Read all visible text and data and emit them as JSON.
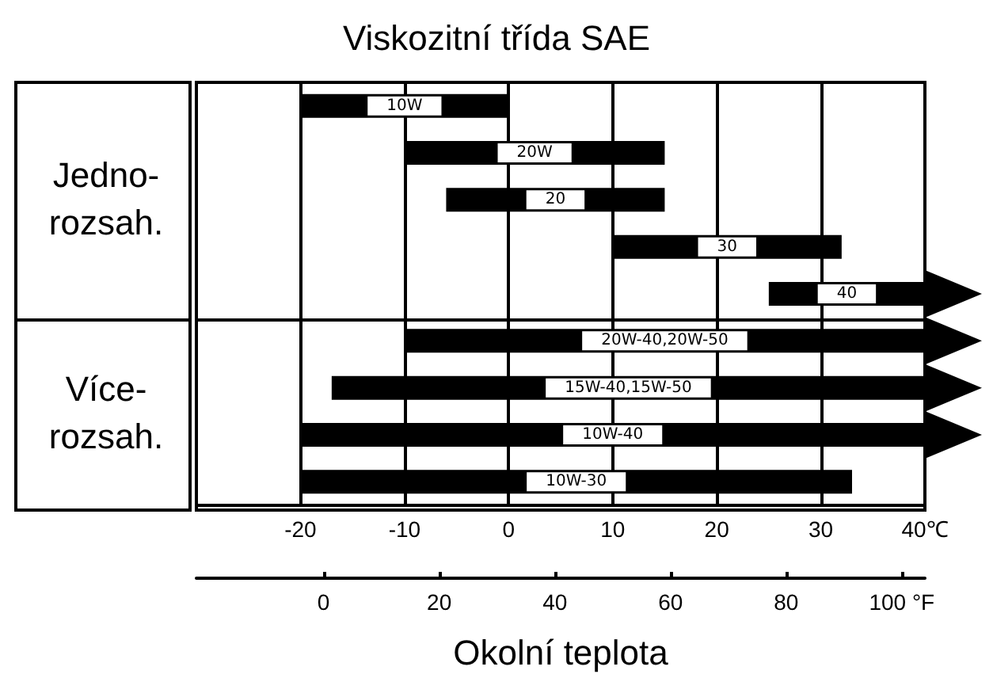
{
  "chart_data": {
    "type": "bar",
    "orientation": "horizontal",
    "title": "Viskozitní třída SAE",
    "xlabel": "Okolní teplota",
    "categories": [
      null,
      null,
      null,
      null,
      null,
      null,
      null,
      null,
      null
    ],
    "series": [
      {
        "name": "10W",
        "base": [
          -20,
          null,
          null,
          null,
          null,
          null,
          null,
          null,
          null
        ],
        "values": [
          20,
          null,
          null,
          null,
          null,
          null,
          null,
          null,
          null
        ]
      },
      {
        "name": "20W",
        "base": [
          null,
          -10,
          null,
          null,
          null,
          null,
          null,
          null,
          null
        ],
        "values": [
          null,
          25,
          null,
          null,
          null,
          null,
          null,
          null,
          null
        ]
      },
      {
        "name": "20",
        "base": [
          null,
          null,
          -6,
          null,
          null,
          null,
          null,
          null,
          null
        ],
        "values": [
          null,
          null,
          21,
          null,
          null,
          null,
          null,
          null,
          null
        ]
      },
      {
        "name": "30",
        "base": [
          null,
          null,
          null,
          10,
          null,
          null,
          null,
          null,
          null
        ],
        "values": [
          null,
          null,
          null,
          22,
          null,
          null,
          null,
          null,
          null
        ]
      },
      {
        "name": "40",
        "base": [
          null,
          null,
          null,
          null,
          25,
          null,
          null,
          null,
          null
        ],
        "values": [
          null,
          null,
          null,
          null,
          15,
          null,
          null,
          null,
          null
        ]
      },
      {
        "name": "20W-40,20W-50",
        "base": [
          null,
          null,
          null,
          null,
          null,
          -10,
          null,
          null,
          null
        ],
        "values": [
          null,
          null,
          null,
          null,
          null,
          50,
          null,
          null,
          null
        ]
      },
      {
        "name": "15W-40,15W-50",
        "base": [
          null,
          null,
          null,
          null,
          null,
          null,
          -17,
          null,
          null
        ],
        "values": [
          null,
          null,
          null,
          null,
          null,
          null,
          57,
          null,
          null
        ]
      },
      {
        "name": "10W-40",
        "base": [
          null,
          null,
          null,
          null,
          null,
          null,
          null,
          -20,
          null
        ],
        "values": [
          null,
          null,
          null,
          null,
          null,
          null,
          null,
          60,
          null
        ]
      },
      {
        "name": "10W-30",
        "base": [
          null,
          null,
          null,
          null,
          null,
          null,
          null,
          null,
          -20
        ],
        "values": [
          null,
          null,
          null,
          null,
          null,
          null,
          null,
          null,
          53
        ]
      }
    ],
    "color": "#000000",
    "xlim": [
      -30,
      40
    ],
    "xticks": [
      -20,
      -10,
      0,
      10,
      20,
      30,
      {
        "value": 40,
        "label": "40℃"
      }
    ],
    "x2lim": [
      -22,
      104
    ],
    "x2ticks": [
      0,
      20,
      40,
      60,
      80,
      {
        "value": 100,
        "label": "100 °F"
      }
    ],
    "annotations": [
      "Jedno-\nrozsah.",
      "Více-\nrozsah."
    ],
    "grid": "x"
  }
}
